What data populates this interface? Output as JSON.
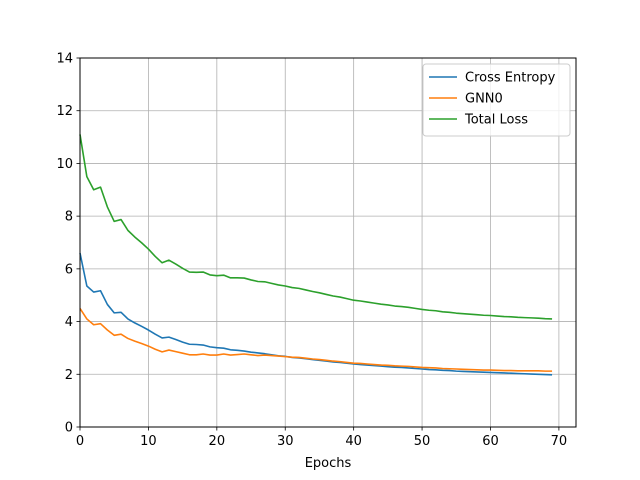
{
  "chart_data": {
    "type": "line",
    "title": "",
    "xlabel": "Epochs",
    "ylabel": "",
    "xlim": [
      0,
      72.5
    ],
    "ylim": [
      0,
      14
    ],
    "xticks": [
      0,
      10,
      20,
      30,
      40,
      50,
      60,
      70
    ],
    "yticks": [
      0,
      2,
      4,
      6,
      8,
      10,
      12,
      14
    ],
    "grid": true,
    "legend": "top-right",
    "series": [
      {
        "name": "Cross Entropy",
        "color": "#1f77b4",
        "values": [
          6.6,
          5.35,
          5.12,
          5.17,
          4.65,
          4.33,
          4.35,
          4.1,
          3.95,
          3.82,
          3.68,
          3.52,
          3.38,
          3.41,
          3.32,
          3.22,
          3.14,
          3.13,
          3.11,
          3.04,
          3.01,
          2.99,
          2.93,
          2.91,
          2.88,
          2.84,
          2.81,
          2.78,
          2.74,
          2.7,
          2.68,
          2.64,
          2.62,
          2.59,
          2.56,
          2.53,
          2.5,
          2.47,
          2.45,
          2.42,
          2.39,
          2.37,
          2.35,
          2.33,
          2.31,
          2.29,
          2.27,
          2.26,
          2.24,
          2.22,
          2.2,
          2.18,
          2.17,
          2.15,
          2.14,
          2.12,
          2.11,
          2.1,
          2.09,
          2.08,
          2.07,
          2.06,
          2.05,
          2.04,
          2.03,
          2.02,
          2.01,
          2.0,
          1.99,
          1.98
        ]
      },
      {
        "name": "GNN0",
        "color": "#ff7f0e",
        "values": [
          4.5,
          4.1,
          3.88,
          3.92,
          3.68,
          3.48,
          3.52,
          3.36,
          3.26,
          3.17,
          3.07,
          2.95,
          2.85,
          2.92,
          2.86,
          2.8,
          2.74,
          2.74,
          2.77,
          2.73,
          2.73,
          2.77,
          2.73,
          2.75,
          2.77,
          2.74,
          2.71,
          2.73,
          2.71,
          2.69,
          2.67,
          2.65,
          2.64,
          2.61,
          2.58,
          2.56,
          2.53,
          2.5,
          2.48,
          2.45,
          2.42,
          2.41,
          2.39,
          2.37,
          2.35,
          2.34,
          2.32,
          2.31,
          2.3,
          2.28,
          2.26,
          2.25,
          2.24,
          2.22,
          2.21,
          2.2,
          2.19,
          2.18,
          2.17,
          2.16,
          2.16,
          2.15,
          2.14,
          2.14,
          2.13,
          2.13,
          2.13,
          2.13,
          2.12,
          2.12
        ]
      },
      {
        "name": "Total Loss",
        "color": "#2ca02c",
        "values": [
          11.1,
          9.5,
          9.0,
          9.1,
          8.35,
          7.8,
          7.87,
          7.46,
          7.21,
          6.99,
          6.75,
          6.47,
          6.23,
          6.33,
          6.18,
          6.02,
          5.88,
          5.87,
          5.88,
          5.77,
          5.74,
          5.76,
          5.66,
          5.66,
          5.65,
          5.58,
          5.52,
          5.51,
          5.45,
          5.39,
          5.35,
          5.29,
          5.26,
          5.2,
          5.14,
          5.09,
          5.03,
          4.97,
          4.93,
          4.87,
          4.81,
          4.78,
          4.74,
          4.7,
          4.66,
          4.63,
          4.59,
          4.57,
          4.54,
          4.5,
          4.46,
          4.43,
          4.41,
          4.37,
          4.35,
          4.32,
          4.3,
          4.28,
          4.26,
          4.24,
          4.23,
          4.21,
          4.19,
          4.18,
          4.16,
          4.15,
          4.14,
          4.13,
          4.11,
          4.1
        ]
      }
    ]
  }
}
